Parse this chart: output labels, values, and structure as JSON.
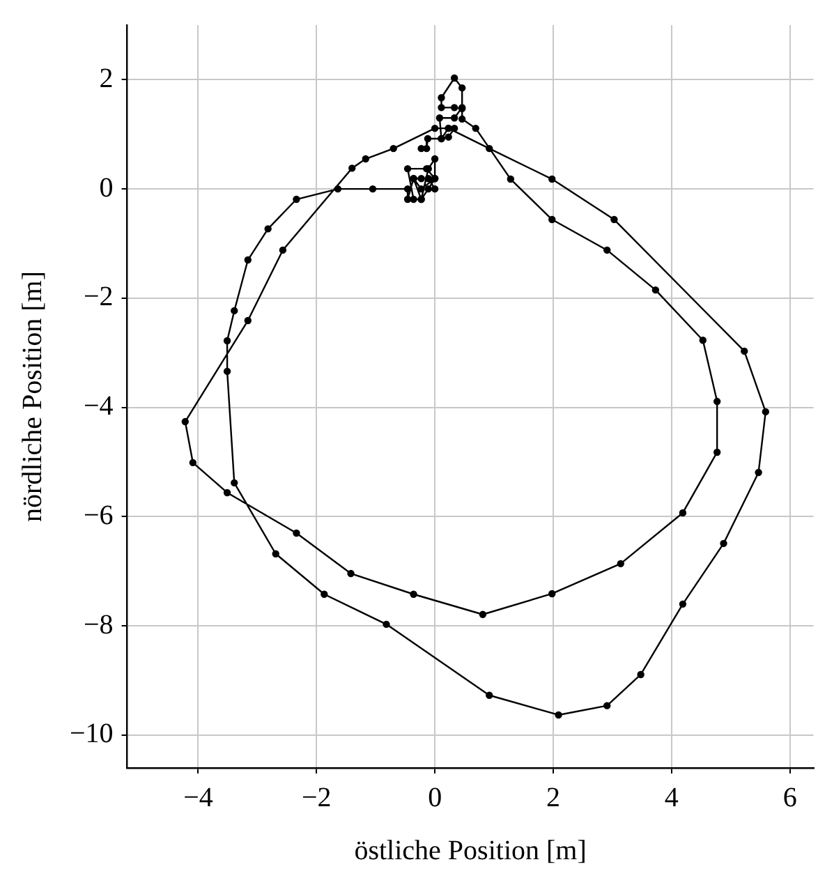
{
  "chart_data": {
    "type": "line",
    "xlabel": "östliche Position [m]",
    "ylabel": "nördliche Position [m]",
    "marker": "circle",
    "grid": true,
    "line_style": "solid",
    "xlim": [
      -5.2,
      6.4
    ],
    "ylim": [
      -10.6,
      3.0
    ],
    "xticks": [
      {
        "value": -4,
        "label": "−4"
      },
      {
        "value": -2,
        "label": "−2"
      },
      0,
      2,
      4,
      6
    ],
    "yticks": [
      {
        "value": -10,
        "label": "−10"
      },
      {
        "value": -8,
        "label": "−8"
      },
      {
        "value": -6,
        "label": "−6"
      },
      {
        "value": -4,
        "label": "−4"
      },
      {
        "value": -2,
        "label": "−2"
      },
      0,
      2
    ],
    "series": [
      {
        "color": "#000000",
        "x": [
          0,
          -0.11,
          -0.23,
          -0.36,
          -0.23,
          -0.11,
          0,
          0,
          -0.14,
          -0.46,
          -0.36,
          -0.23,
          -0.11,
          0,
          -0.23,
          -0.36,
          -0.46,
          -0.46,
          -1.05,
          -1.64,
          -2.34,
          -2.82,
          -3.16,
          -3.39,
          -3.51,
          -3.51,
          -3.39,
          -2.69,
          -1.87,
          -0.82,
          0.92,
          2.09,
          2.91,
          3.48,
          4.19,
          4.88,
          5.47,
          5.59,
          5.23,
          3.03,
          1.98,
          0.92,
          0.23,
          0,
          -0.7,
          -1.17,
          -1.4,
          -2.57,
          -3.16,
          -4.22,
          -4.09,
          -3.51,
          -2.34,
          -1.42,
          -0.36,
          0.81,
          1.98,
          3.14,
          4.19,
          4.77,
          4.77,
          4.53,
          3.73,
          2.91,
          1.98,
          1.28,
          0.69,
          0.46,
          0.46,
          0.33,
          0.11,
          0.11,
          0.33,
          0.46,
          0.46,
          0.33,
          0.08,
          0.11,
          0.23,
          0.33,
          0.23,
          0.11,
          -0.12,
          -0.14,
          -0.23
        ],
        "values": [
          0,
          0.19,
          0.19,
          0.19,
          -0.19,
          0.37,
          0.55,
          0.19,
          0.37,
          0.37,
          -0.19,
          -0.19,
          0,
          0.19,
          0,
          0.19,
          -0.19,
          0,
          0,
          0,
          -0.19,
          -0.73,
          -1.3,
          -2.23,
          -2.78,
          -3.34,
          -5.38,
          -6.68,
          -7.42,
          -7.97,
          -9.27,
          -9.63,
          -9.46,
          -8.89,
          -7.6,
          -6.49,
          -5.19,
          -4.08,
          -2.97,
          -0.56,
          0.18,
          0.74,
          1.11,
          1.11,
          0.74,
          0.55,
          0.38,
          -1.12,
          -2.41,
          -4.26,
          -5.01,
          -5.56,
          -6.3,
          -7.04,
          -7.42,
          -7.79,
          -7.41,
          -6.86,
          -5.93,
          -4.82,
          -3.89,
          -2.77,
          -1.85,
          -1.12,
          -0.56,
          0.18,
          1.11,
          1.28,
          1.47,
          1.49,
          1.49,
          1.67,
          2.03,
          1.85,
          1.49,
          1.3,
          1.3,
          0.92,
          0.95,
          1.11,
          1.11,
          0.92,
          0.92,
          0.74,
          0.74
        ]
      }
    ]
  }
}
